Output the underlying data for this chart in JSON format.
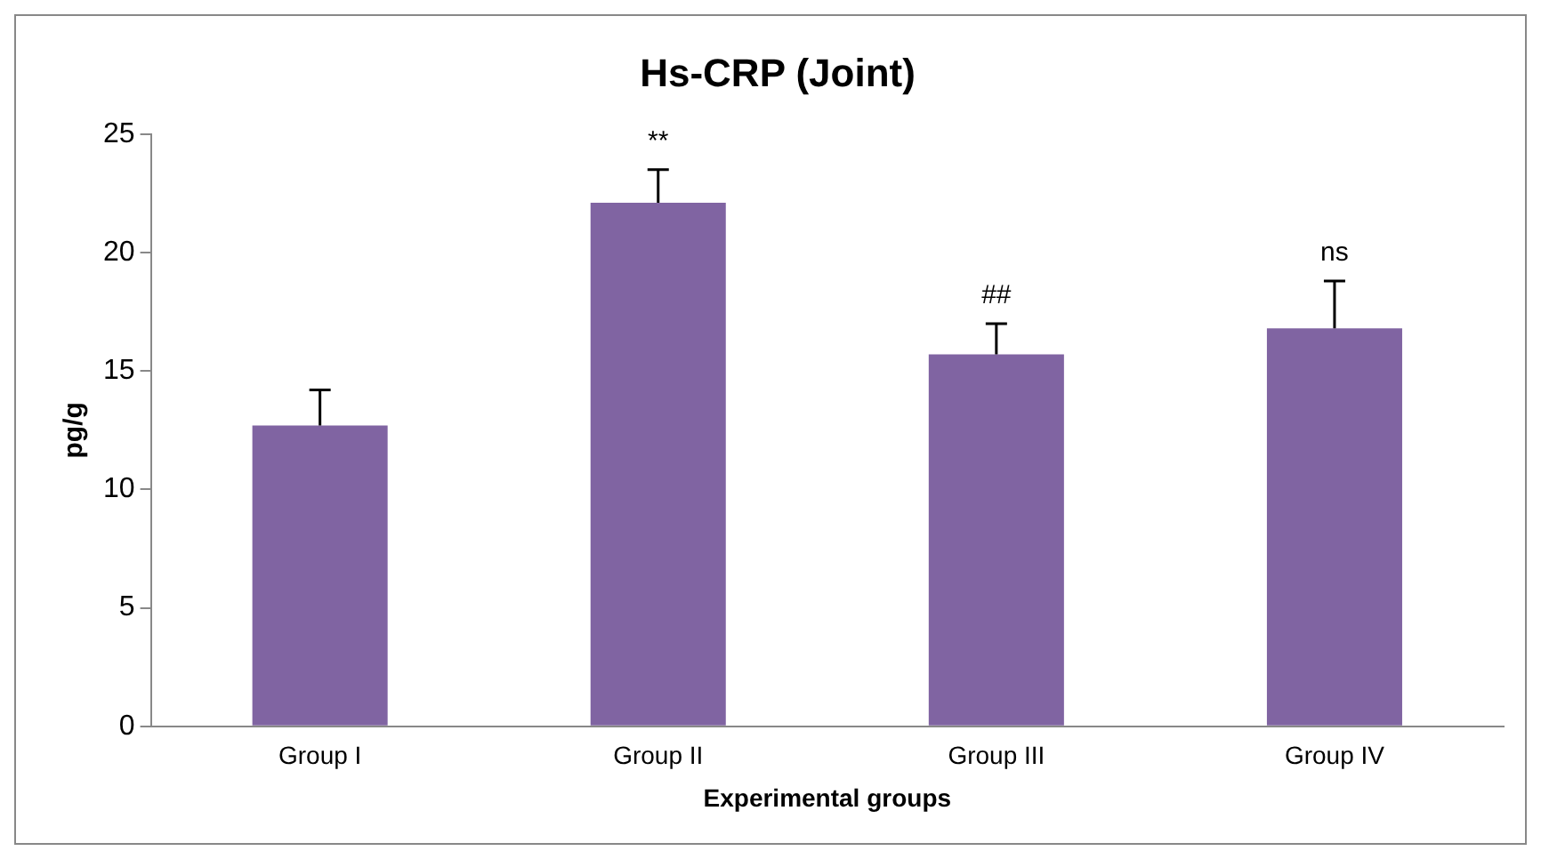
{
  "chart_data": {
    "type": "bar",
    "title": "Hs-CRP (Joint)",
    "xlabel": "Experimental groups",
    "ylabel": "pg/g",
    "categories": [
      "Group I",
      "Group II",
      "Group III",
      "Group IV"
    ],
    "values": [
      12.7,
      22.1,
      15.7,
      16.8
    ],
    "errors": [
      1.5,
      1.4,
      1.3,
      2.0
    ],
    "color": "#8064a2",
    "ylim": [
      0,
      25
    ],
    "yticks": [
      0,
      5,
      10,
      15,
      20,
      25
    ],
    "grid": false,
    "legend": false,
    "annotations": [
      {
        "text": "**",
        "x": "Group II",
        "y": 23.5
      },
      {
        "text": "##",
        "x": "Group III",
        "y": 17
      },
      {
        "text": "ns",
        "x": "Group IV",
        "y": 18.8
      }
    ]
  }
}
